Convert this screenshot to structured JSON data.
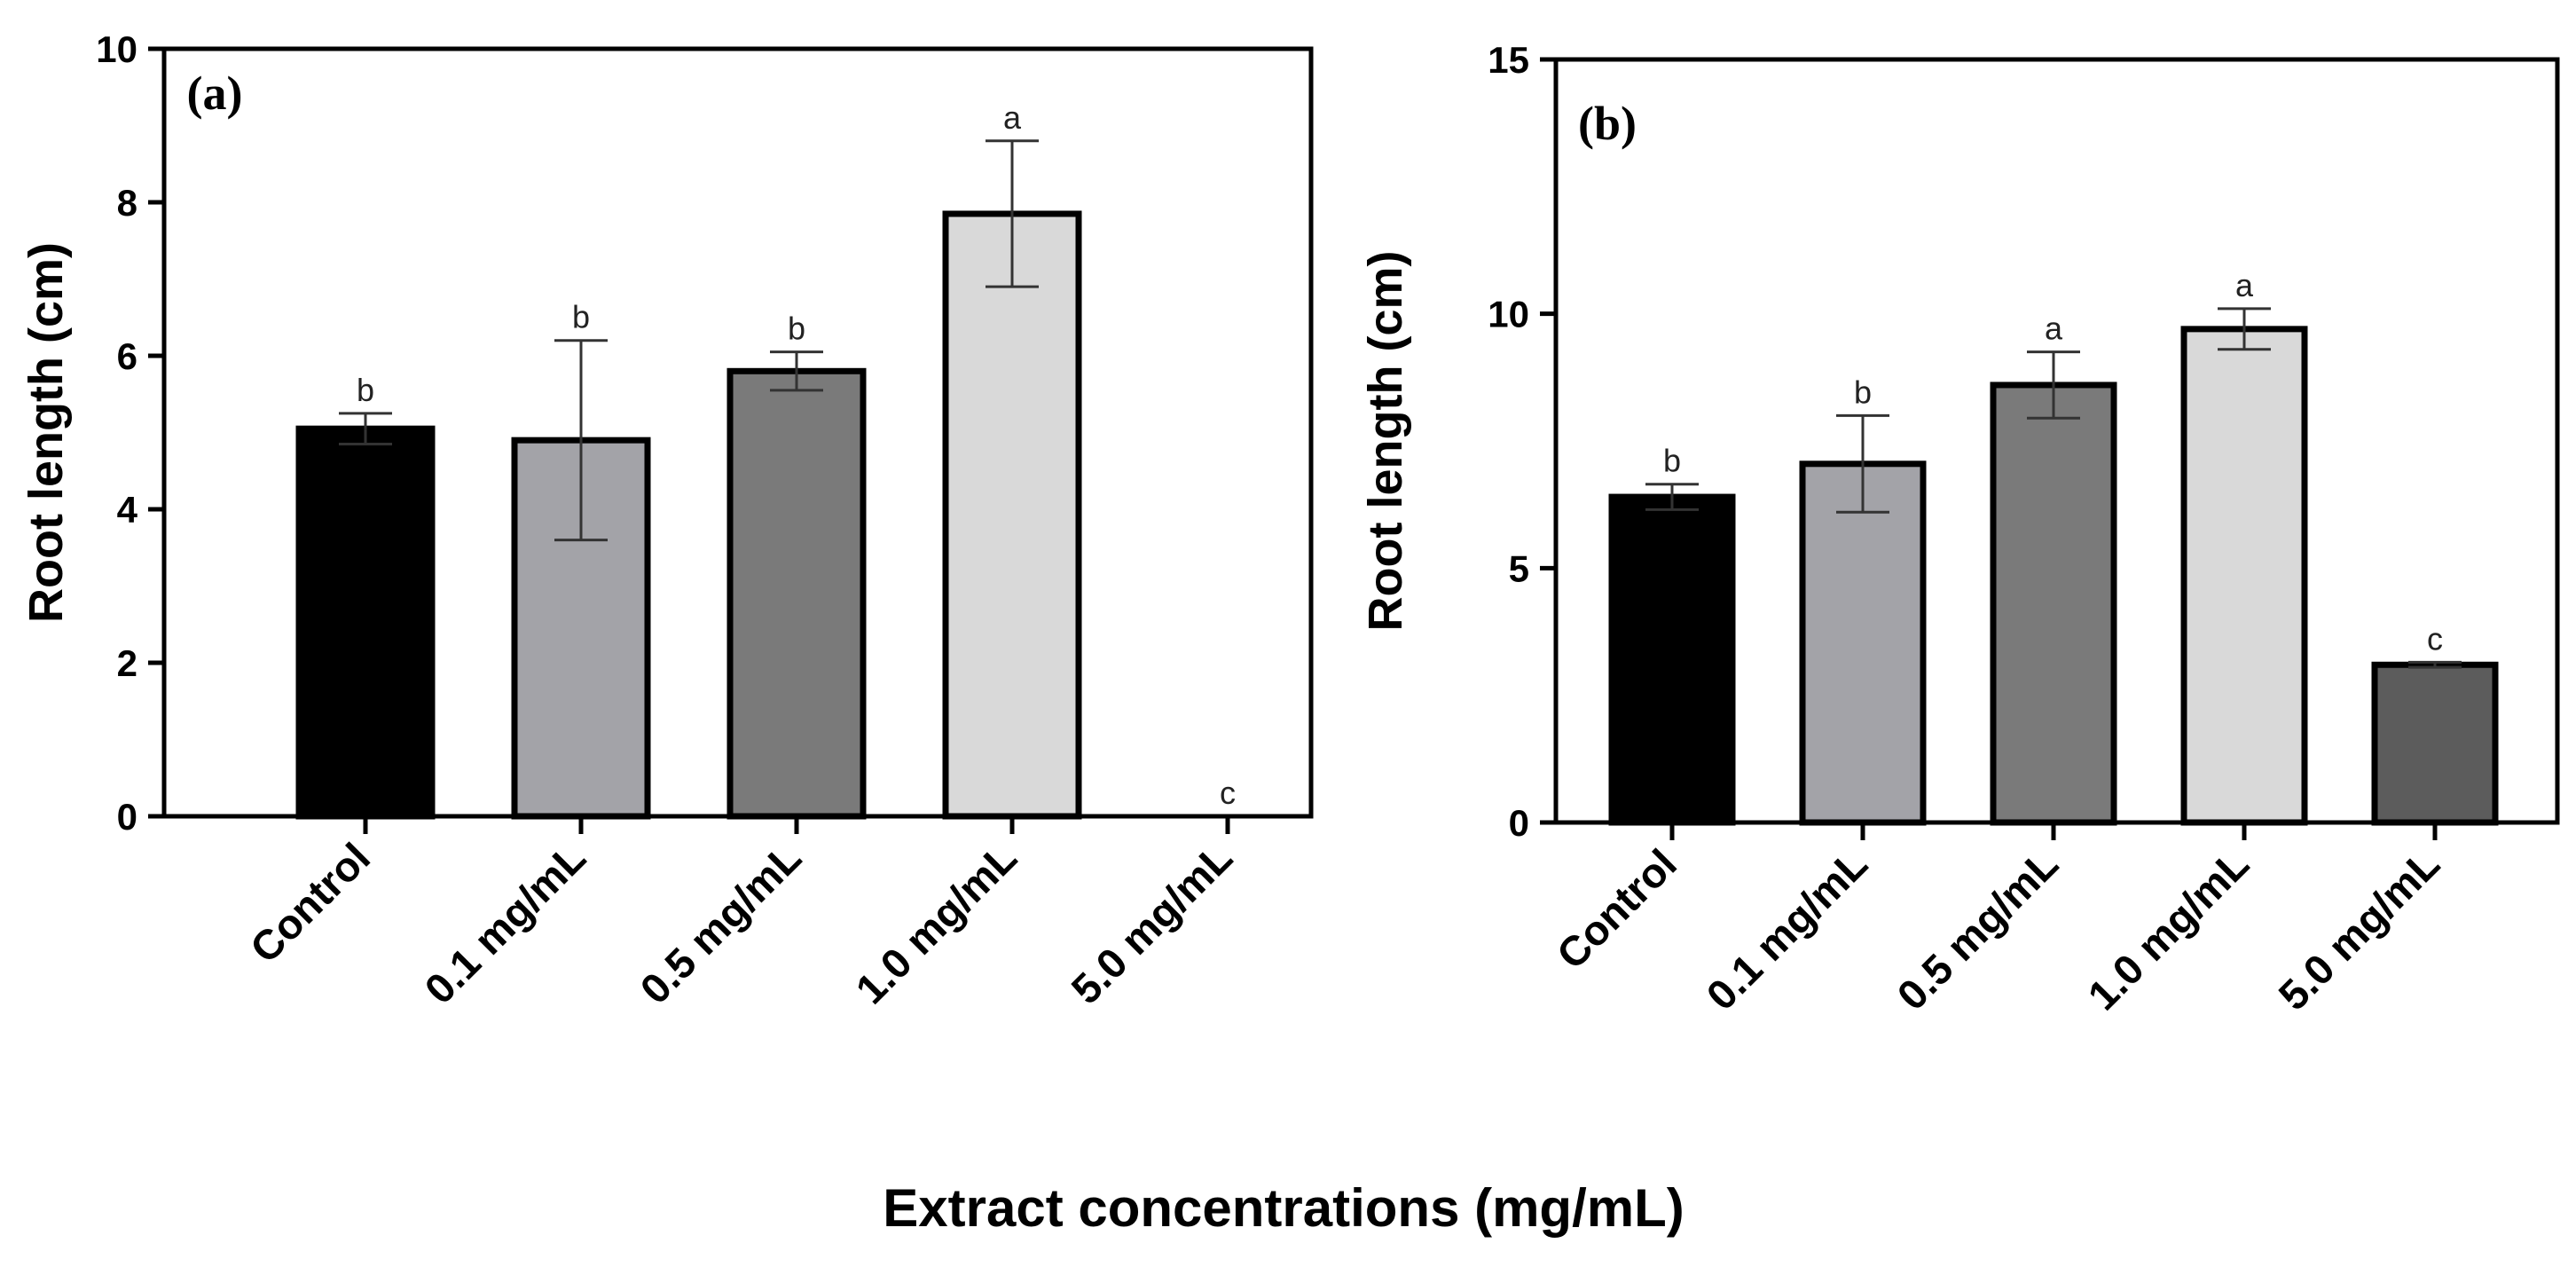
{
  "figure": {
    "xlabel": "Extract concentrations (mg/mL)"
  },
  "chart_data": [
    {
      "type": "bar",
      "panel_label": "(a)",
      "title": "",
      "xlabel": "",
      "ylabel": "Root length (cm)",
      "ylim": [
        0,
        10
      ],
      "yticks": [
        0,
        2,
        4,
        6,
        8,
        10
      ],
      "categories": [
        "Control",
        "0.1 mg/mL",
        "0.5 mg/mL",
        "1.0 mg/mL",
        "5.0 mg/mL"
      ],
      "values": [
        5.05,
        4.9,
        5.8,
        7.85,
        0
      ],
      "errors": [
        0.2,
        1.3,
        0.25,
        0.95,
        0
      ],
      "significance": [
        "b",
        "b",
        "b",
        "a",
        "c"
      ],
      "bar_colors": [
        "#000000",
        "#a3a3a8",
        "#7a7a7a",
        "#d9d9d9",
        "#5c5c5c"
      ],
      "grid": false
    },
    {
      "type": "bar",
      "panel_label": "(b)",
      "title": "",
      "xlabel": "",
      "ylabel": "Root length (cm)",
      "ylim": [
        0,
        15
      ],
      "yticks": [
        0,
        5,
        10,
        15
      ],
      "categories": [
        "Control",
        "0.1 mg/mL",
        "0.5 mg/mL",
        "1.0 mg/mL",
        "5.0 mg/mL"
      ],
      "values": [
        6.4,
        7.05,
        8.6,
        9.7,
        3.1
      ],
      "errors": [
        0.25,
        0.95,
        0.65,
        0.4,
        0.05
      ],
      "significance": [
        "b",
        "b",
        "a",
        "a",
        "c"
      ],
      "bar_colors": [
        "#000000",
        "#a3a3a8",
        "#7a7a7a",
        "#d9d9d9",
        "#5c5c5c"
      ],
      "grid": false
    }
  ]
}
